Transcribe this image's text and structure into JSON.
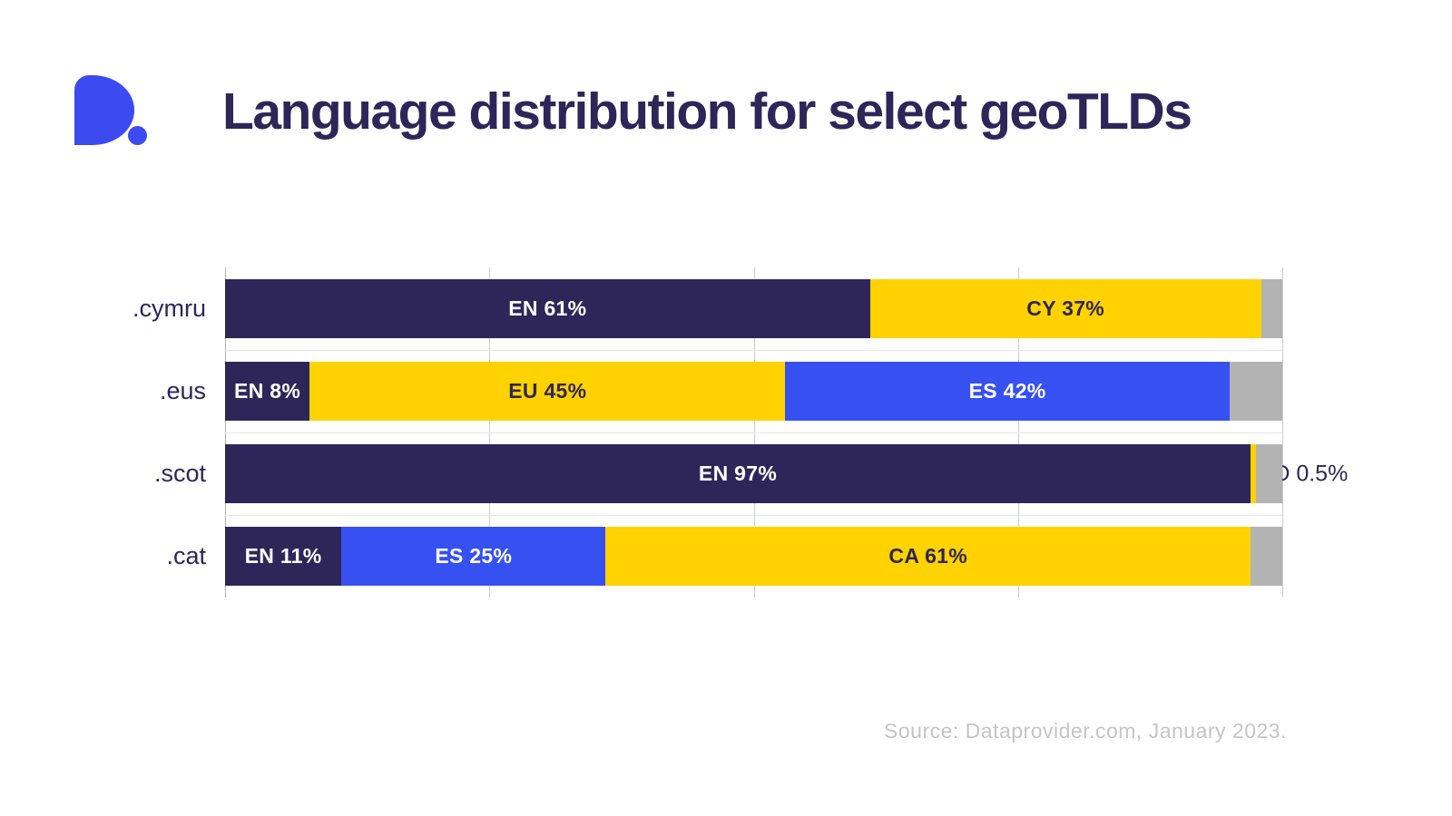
{
  "title": "Language distribution for select geoTLDs",
  "source": "Source: Dataprovider.com, January 2023.",
  "logo": {
    "icon": "dataprovider-d-mark"
  },
  "colors": {
    "navy": "#2E2659",
    "yellow": "#FFD200",
    "blue": "#3650F2",
    "gray": "#B3B3B3",
    "logo_blue": "#3B4BF0",
    "title_text": "#2E2659",
    "label_on_dark": "#FFFFFF",
    "label_on_yellow": "#2E2659",
    "row_label_text": "#2E2659",
    "source_text": "#C5C5C5",
    "gridline": "#CCCCCC",
    "axis_line": "#AEAEAE",
    "separator": "#E8E8E8"
  },
  "chart_data": {
    "type": "bar",
    "orientation": "horizontal",
    "stacked": true,
    "unit": "percent",
    "axis_min": 0,
    "axis_max": 100,
    "gridlines_percent": [
      0,
      25,
      50,
      75,
      100
    ],
    "grid": true,
    "legend": false,
    "categories": [
      ".cymru",
      ".eus",
      ".scot",
      ".cat"
    ],
    "rows": [
      {
        "tld": ".cymru",
        "segments": [
          {
            "lang": "EN",
            "value": 61,
            "color": "navy",
            "label": "EN 61%"
          },
          {
            "lang": "CY",
            "value": 37,
            "color": "yellow",
            "label": "CY 37%"
          },
          {
            "lang": "other",
            "value": 2,
            "color": "gray",
            "label": ""
          }
        ]
      },
      {
        "tld": ".eus",
        "segments": [
          {
            "lang": "EN",
            "value": 8,
            "color": "navy",
            "label": "EN 8%"
          },
          {
            "lang": "EU",
            "value": 45,
            "color": "yellow",
            "label": "EU 45%"
          },
          {
            "lang": "ES",
            "value": 42,
            "color": "blue",
            "label": "ES 42%"
          },
          {
            "lang": "other",
            "value": 5,
            "color": "gray",
            "label": ""
          }
        ]
      },
      {
        "tld": ".scot",
        "segments": [
          {
            "lang": "EN",
            "value": 97,
            "color": "navy",
            "label": "EN 97%"
          },
          {
            "lang": "GD",
            "value": 0.5,
            "color": "yellow",
            "label": "GD 0.5%",
            "label_position": "outside"
          },
          {
            "lang": "other",
            "value": 2.5,
            "color": "gray",
            "label": ""
          }
        ]
      },
      {
        "tld": ".cat",
        "segments": [
          {
            "lang": "EN",
            "value": 11,
            "color": "navy",
            "label": "EN 11%"
          },
          {
            "lang": "ES",
            "value": 25,
            "color": "blue",
            "label": "ES 25%"
          },
          {
            "lang": "CA",
            "value": 61,
            "color": "yellow",
            "label": "CA 61%"
          },
          {
            "lang": "other",
            "value": 3,
            "color": "gray",
            "label": ""
          }
        ]
      }
    ]
  }
}
